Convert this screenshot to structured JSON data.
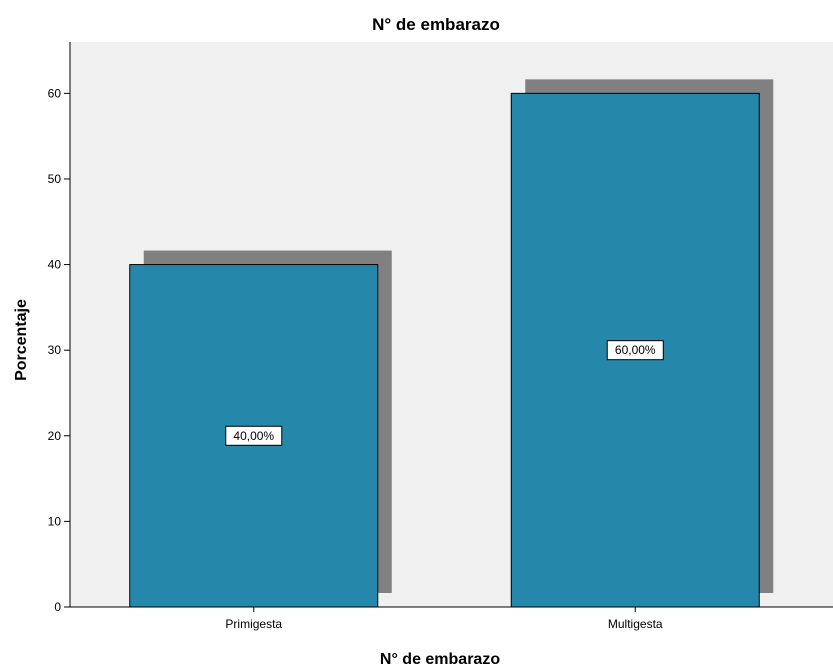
{
  "chart_data": {
    "type": "bar",
    "title": "N° de embarazo",
    "xlabel": "N° de embarazo",
    "ylabel": "Porcentaje",
    "categories": [
      "Primigesta",
      "Multigesta"
    ],
    "values": [
      40,
      60
    ],
    "data_labels": [
      "40,00%",
      "60,00%"
    ],
    "yticks": [
      0,
      10,
      20,
      30,
      40,
      50,
      60
    ],
    "ylim": [
      0,
      66
    ],
    "grid": false,
    "legend": "none",
    "colors": {
      "bar": "#2588aa",
      "bar_stroke": "#000000",
      "shadow": "#808080",
      "plot_background": "#f0f0f0",
      "axis": "#000000"
    }
  }
}
